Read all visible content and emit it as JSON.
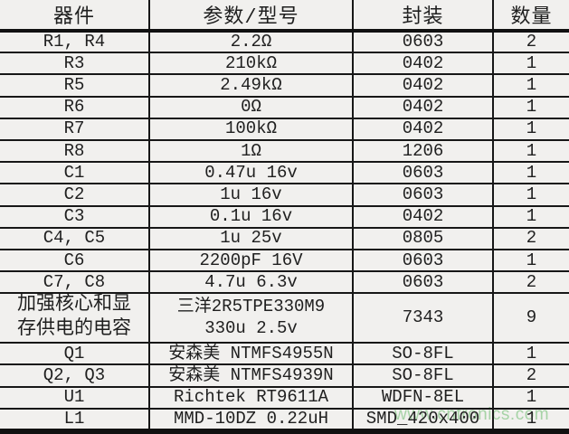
{
  "header": {
    "component": "器件",
    "param": "参数/型号",
    "package": "封装",
    "qty": "数量"
  },
  "rows": [
    {
      "component": "R1, R4",
      "param": "2.2Ω",
      "package": "0603",
      "qty": "2"
    },
    {
      "component": "R3",
      "param": "210kΩ",
      "package": "0402",
      "qty": "1"
    },
    {
      "component": "R5",
      "param": "2.49kΩ",
      "package": "0402",
      "qty": "1"
    },
    {
      "component": "R6",
      "param": "0Ω",
      "package": "0402",
      "qty": "1"
    },
    {
      "component": "R7",
      "param": "100kΩ",
      "package": "0402",
      "qty": "1"
    },
    {
      "component": "R8",
      "param": "1Ω",
      "package": "1206",
      "qty": "1"
    },
    {
      "component": "C1",
      "param": "0.47u 16v",
      "package": "0603",
      "qty": "1"
    },
    {
      "component": "C2",
      "param": "1u 16v",
      "package": "0603",
      "qty": "1"
    },
    {
      "component": "C3",
      "param": "0.1u 16v",
      "package": "0402",
      "qty": "1"
    },
    {
      "component": "C4, C5",
      "param": "1u 25v",
      "package": "0805",
      "qty": "2"
    },
    {
      "component": "C6",
      "param": "2200pF 16V",
      "package": "0603",
      "qty": "1"
    },
    {
      "component": "C7, C8",
      "param": "4.7u 6.3v",
      "package": "0603",
      "qty": "2"
    },
    {
      "component_line1": "加强核心和显",
      "component_line2": "存供电的电容",
      "param_line1": "三洋2R5TPE330M9",
      "param_line2": "330u 2.5v",
      "package": "7343",
      "qty": "9"
    },
    {
      "component": "Q1",
      "param": "安森美 NTMFS4955N",
      "package": "SO-8FL",
      "qty": "1"
    },
    {
      "component": "Q2, Q3",
      "param": "安森美 NTMFS4939N",
      "package": "SO-8FL",
      "qty": "2"
    },
    {
      "component": "U1",
      "param": "Richtek RT9611A",
      "package": "WDFN-8EL",
      "qty": "1"
    },
    {
      "component": "L1",
      "param": "MMD-10DZ 0.22uH",
      "package": "SMD_420x400",
      "qty": "1"
    }
  ],
  "watermark": {
    "text": "www.cntronics.com",
    "color": "#a6d3a6"
  },
  "colors": {
    "background": "#f1f0ee",
    "border": "#171717",
    "text": "#1f1f1f"
  }
}
